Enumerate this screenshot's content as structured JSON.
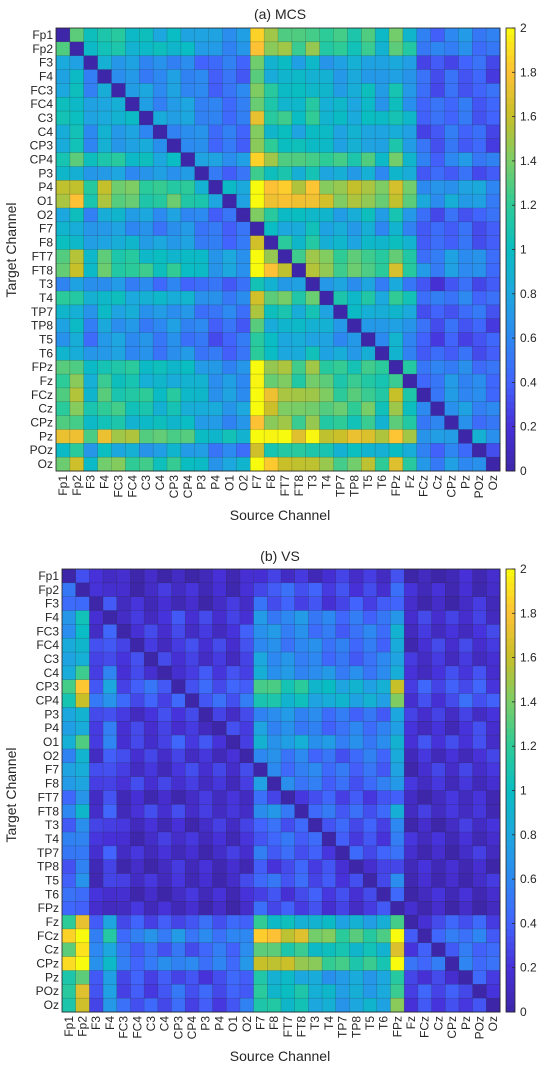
{
  "chart_data": [
    {
      "type": "heatmap",
      "title": "(a)   MCS",
      "xlabel": "Source Channel",
      "ylabel": "Target Channel",
      "categories": [
        "Fp1",
        "Fp2",
        "F3",
        "F4",
        "FC3",
        "FC4",
        "C3",
        "C4",
        "CP3",
        "CP4",
        "P3",
        "P4",
        "O1",
        "O2",
        "F7",
        "F8",
        "FT7",
        "FT8",
        "T3",
        "T4",
        "TP7",
        "TP8",
        "T5",
        "T6",
        "FPz",
        "Fz",
        "FCz",
        "Cz",
        "CPz",
        "Pz",
        "POz",
        "Oz"
      ],
      "colorbar": {
        "min": 0,
        "max": 2,
        "ticks": [
          "0",
          "0.2",
          "0.4",
          "0.6",
          "0.8",
          "1",
          "1.2",
          "1.4",
          "1.6",
          "1.8",
          "2"
        ]
      },
      "colormap": "parula",
      "row_base": [
        1.2,
        1.2,
        0.8,
        0.8,
        0.9,
        0.9,
        1.0,
        0.85,
        0.9,
        1.2,
        0.85,
        1.55,
        1.55,
        0.9,
        0.8,
        0.95,
        1.3,
        1.4,
        0.7,
        1.1,
        0.9,
        0.8,
        0.75,
        0.8,
        1.25,
        1.2,
        1.35,
        1.3,
        1.2,
        1.7,
        1.0,
        1.45
      ],
      "col_factor": [
        1.0,
        1.1,
        0.75,
        0.95,
        0.9,
        0.85,
        0.8,
        0.75,
        0.8,
        0.75,
        0.65,
        0.55,
        0.55,
        0.55,
        1.6,
        1.2,
        1.15,
        1.05,
        1.15,
        1.0,
        0.95,
        0.95,
        1.0,
        0.85,
        1.1,
        0.85,
        0.45,
        0.42,
        0.5,
        0.5,
        0.45,
        0.4
      ]
    },
    {
      "type": "heatmap",
      "title": "(b)   VS",
      "xlabel": "Source Channel",
      "ylabel": "Target Channel",
      "categories": [
        "Fp1",
        "Fp2",
        "F3",
        "F4",
        "FC3",
        "FC4",
        "C3",
        "C4",
        "CP3",
        "CP4",
        "P3",
        "P4",
        "O1",
        "O2",
        "F7",
        "F8",
        "FT7",
        "FT8",
        "T3",
        "T4",
        "TP7",
        "TP8",
        "T5",
        "T6",
        "FPz",
        "Fz",
        "FCz",
        "Cz",
        "CPz",
        "Pz",
        "POz",
        "Oz"
      ],
      "colorbar": {
        "min": 0,
        "max": 2,
        "ticks": [
          "0",
          "0.2",
          "0.4",
          "0.6",
          "0.8",
          "1",
          "1.2",
          "1.4",
          "1.6",
          "1.8",
          "2"
        ]
      },
      "colormap": "parula",
      "row_base": [
        0.2,
        0.35,
        0.35,
        0.6,
        0.6,
        0.6,
        0.6,
        0.7,
        1.1,
        1.0,
        0.6,
        0.6,
        0.75,
        0.55,
        0.55,
        0.55,
        0.35,
        0.55,
        0.4,
        0.4,
        0.4,
        0.3,
        0.4,
        0.3,
        0.3,
        1.0,
        1.6,
        1.2,
        1.5,
        0.9,
        1.0,
        1.0
      ],
      "col_factor": [
        1.2,
        1.6,
        0.4,
        0.7,
        0.35,
        0.35,
        0.35,
        0.35,
        0.4,
        0.35,
        0.35,
        0.35,
        0.35,
        0.45,
        1.15,
        1.05,
        1.0,
        1.0,
        0.9,
        0.85,
        0.8,
        0.8,
        0.8,
        0.8,
        1.35,
        0.25,
        0.3,
        0.3,
        0.3,
        0.35,
        0.35,
        0.3
      ]
    }
  ]
}
